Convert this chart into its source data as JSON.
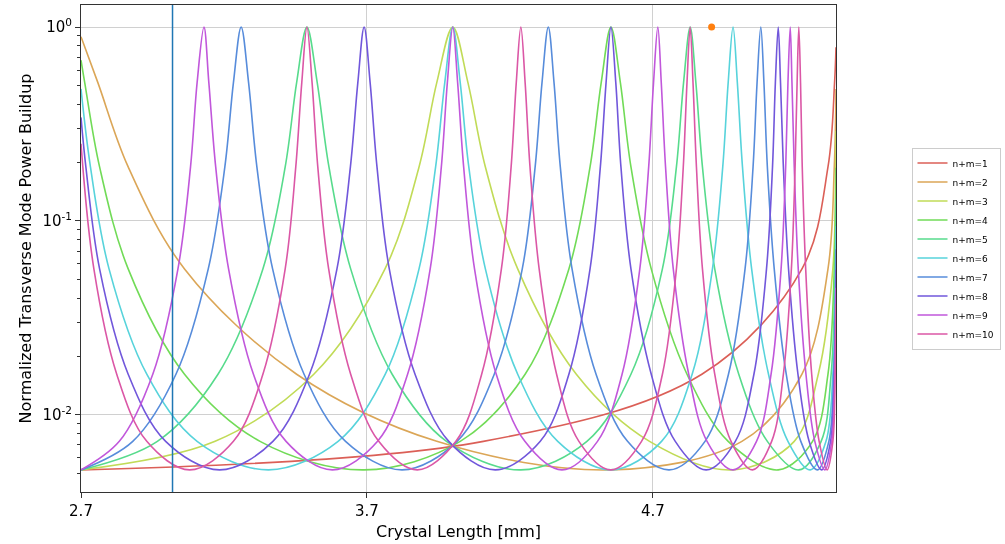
{
  "chart_data": {
    "type": "line",
    "xlabel": "Crystal Length [mm]",
    "ylabel": "Normalized Transverse Mode Power Buildup",
    "log": "y",
    "grid": true,
    "legend": "right",
    "line_style": "solid",
    "xlim": [
      2.7,
      5.34
    ],
    "xticks": [
      2.7,
      3.7,
      4.7
    ],
    "ylim": [
      0.004,
      1.3
    ],
    "yticks": [
      {
        "value": 0.005,
        "label": null
      },
      {
        "value": 0.006,
        "label": null
      },
      {
        "value": 0.007,
        "label": null
      },
      {
        "value": 0.008,
        "label": null
      },
      {
        "value": 0.009,
        "label": null
      },
      {
        "value": 0.01,
        "label": "10$^{-2}$"
      },
      {
        "value": 0.02,
        "label": null
      },
      {
        "value": 0.03,
        "label": null
      },
      {
        "value": 0.04,
        "label": null
      },
      {
        "value": 0.05,
        "label": null
      },
      {
        "value": 0.06,
        "label": null
      },
      {
        "value": 0.07,
        "label": null
      },
      {
        "value": 0.08,
        "label": null
      },
      {
        "value": 0.09,
        "label": null
      },
      {
        "value": 0.1,
        "label": "10$^{-1}$"
      },
      {
        "value": 0.2,
        "label": null
      },
      {
        "value": 0.3,
        "label": null
      },
      {
        "value": 0.4,
        "label": null
      },
      {
        "value": 0.5,
        "label": null
      },
      {
        "value": 0.6,
        "label": null
      },
      {
        "value": 0.7,
        "label": null
      },
      {
        "value": 0.8,
        "label": null
      },
      {
        "value": 0.9,
        "label": null
      },
      {
        "value": 1,
        "label": "10$^{0}$"
      }
    ],
    "ref_lines": [
      {
        "axis": "x",
        "value": 3.02,
        "color": "#1f77b4",
        "line_style": "solid"
      }
    ],
    "series": [
      {
        "name": "n+m=1",
        "color": "#db5f57",
        "x": [
          2.7,
          4.107,
          4.871,
          5.221,
          5.312,
          5.335,
          5.34
        ],
        "values": [
          0.0052,
          0.0073,
          0.0162,
          0.0566,
          0.19,
          0.517,
          0.787
        ]
      },
      {
        "name": "n+m=2",
        "color": "#dba657",
        "x": [
          2.7,
          2.759,
          2.865,
          3.062,
          3.454,
          3.944,
          4.553,
          5.011,
          5.221,
          5.312,
          5.334,
          5.34
        ],
        "values": [
          0.892,
          0.517,
          0.19,
          0.0566,
          0.0162,
          0.0073,
          0.0052,
          0.0073,
          0.0162,
          0.0566,
          0.19,
          0.48
        ]
      },
      {
        "name": "n+m=3",
        "color": "#c1db57",
        "x": [
          2.7,
          3.169,
          3.514,
          3.763,
          3.882,
          3.944,
          4.0,
          4.053,
          4.114,
          4.227,
          4.432,
          4.688,
          4.98,
          5.194,
          5.278,
          5.329,
          5.339,
          5.34
        ],
        "values": [
          0.0052,
          0.0073,
          0.0162,
          0.0566,
          0.19,
          0.517,
          1,
          0.517,
          0.19,
          0.0566,
          0.0162,
          0.0073,
          0.0052,
          0.0073,
          0.0162,
          0.0566,
          0.19,
          0.291
        ]
      },
      {
        "name": "n+m=4",
        "color": "#71db57",
        "x": [
          2.7,
          2.713,
          2.765,
          2.865,
          3.062,
          3.326,
          3.69,
          4.026,
          4.253,
          4.406,
          4.48,
          4.519,
          4.553,
          4.586,
          4.623,
          4.694,
          4.819,
          4.963,
          5.138,
          5.258,
          5.312,
          5.334,
          5.34
        ],
        "values": [
          0.675,
          0.517,
          0.19,
          0.0566,
          0.0162,
          0.0073,
          0.0052,
          0.0073,
          0.0162,
          0.0566,
          0.19,
          0.517,
          1,
          0.517,
          0.19,
          0.0566,
          0.0162,
          0.0073,
          0.0052,
          0.0073,
          0.0162,
          0.0566,
          0.188
        ]
      },
      {
        "name": "n+m=5",
        "color": "#57db8c",
        "x": [
          2.7,
          2.967,
          3.179,
          3.336,
          3.414,
          3.454,
          3.49,
          3.526,
          3.567,
          3.643,
          3.788,
          3.978,
          4.238,
          4.469,
          4.623,
          4.733,
          4.782,
          4.807,
          4.83,
          4.85,
          4.873,
          4.916,
          5.0,
          5.1,
          5.21,
          5.288,
          5.323,
          5.337,
          5.34
        ],
        "values": [
          0.0052,
          0.0073,
          0.0162,
          0.0566,
          0.19,
          0.517,
          1,
          0.517,
          0.19,
          0.0566,
          0.0162,
          0.0073,
          0.0052,
          0.0073,
          0.0162,
          0.0566,
          0.19,
          0.517,
          1,
          0.517,
          0.19,
          0.0566,
          0.0162,
          0.0073,
          0.0052,
          0.0073,
          0.0162,
          0.0566,
          0.13
        ]
      },
      {
        "name": "n+m=6",
        "color": "#57d3db",
        "x": [
          2.7,
          2.733,
          2.798,
          2.93,
          3.106,
          3.356,
          3.599,
          3.764,
          3.882,
          3.94,
          3.972,
          4.0,
          4.026,
          4.056,
          4.114,
          4.227,
          4.367,
          4.553,
          4.73,
          4.837,
          4.908,
          4.944,
          4.963,
          4.98,
          4.995,
          5.013,
          5.045,
          5.104,
          5.172,
          5.25,
          5.305,
          5.329,
          5.339,
          5.34
        ],
        "values": [
          0.48,
          0.19,
          0.0566,
          0.0162,
          0.0073,
          0.0052,
          0.0073,
          0.0162,
          0.0566,
          0.19,
          0.517,
          1,
          0.517,
          0.19,
          0.0566,
          0.0162,
          0.0073,
          0.0052,
          0.0073,
          0.0162,
          0.0566,
          0.19,
          0.517,
          1,
          0.517,
          0.19,
          0.0566,
          0.0162,
          0.0073,
          0.0052,
          0.0073,
          0.0162,
          0.0566,
          0.094
        ]
      },
      {
        "name": "n+m=7",
        "color": "#578cdb",
        "x": [
          2.7,
          2.881,
          3.032,
          3.145,
          3.203,
          3.233,
          3.26,
          3.286,
          3.315,
          3.37,
          3.48,
          3.625,
          3.823,
          4.015,
          4.145,
          4.243,
          4.288,
          4.312,
          4.334,
          4.354,
          4.376,
          4.417,
          4.501,
          4.611,
          4.757,
          4.882,
          4.964,
          5.022,
          5.05,
          5.064,
          5.077,
          5.088,
          5.1,
          5.124,
          5.166,
          5.217,
          5.275,
          5.315,
          5.332,
          5.34
        ],
        "values": [
          0.0052,
          0.0073,
          0.0162,
          0.0566,
          0.19,
          0.517,
          1,
          0.517,
          0.19,
          0.0566,
          0.0162,
          0.0073,
          0.0052,
          0.0073,
          0.0162,
          0.0566,
          0.19,
          0.517,
          1,
          0.517,
          0.19,
          0.0566,
          0.0162,
          0.0073,
          0.0052,
          0.0073,
          0.0162,
          0.0566,
          0.19,
          0.517,
          1,
          0.517,
          0.19,
          0.0566,
          0.0162,
          0.0073,
          0.0052,
          0.0073,
          0.0162,
          0.0715
        ]
      },
      {
        "name": "n+m=8",
        "color": "#7157db",
        "x": [
          2.7,
          2.717,
          2.765,
          2.865,
          2.996,
          3.185,
          3.371,
          3.499,
          3.595,
          3.642,
          3.668,
          3.69,
          3.711,
          3.735,
          3.778,
          3.868,
          3.986,
          4.149,
          4.306,
          4.406,
          4.48,
          4.516,
          4.536,
          4.553,
          4.57,
          4.588,
          4.623,
          4.694,
          4.778,
          4.886,
          4.988,
          5.053,
          5.097,
          5.118,
          5.128,
          5.138,
          5.146,
          5.156,
          5.174,
          5.207,
          5.246,
          5.29,
          5.321,
          5.334,
          5.34
        ],
        "values": [
          0.342,
          0.19,
          0.0566,
          0.0162,
          0.0073,
          0.0052,
          0.0073,
          0.0162,
          0.0566,
          0.19,
          0.517,
          1,
          0.517,
          0.19,
          0.0566,
          0.0162,
          0.0073,
          0.0052,
          0.0073,
          0.0162,
          0.0566,
          0.19,
          0.517,
          1,
          0.517,
          0.19,
          0.0566,
          0.0162,
          0.0073,
          0.0052,
          0.0073,
          0.0162,
          0.0566,
          0.19,
          0.517,
          1,
          0.517,
          0.19,
          0.0566,
          0.0162,
          0.0073,
          0.0052,
          0.0073,
          0.0162,
          0.0561
        ]
      },
      {
        "name": "n+m=9",
        "color": "#c157db",
        "x": [
          2.7,
          2.834,
          2.951,
          3.039,
          3.083,
          3.106,
          3.13,
          3.147,
          3.171,
          3.216,
          3.303,
          3.417,
          3.579,
          3.737,
          3.842,
          3.921,
          3.96,
          3.981,
          4.0,
          4.017,
          4.038,
          4.076,
          4.152,
          4.252,
          4.382,
          4.506,
          4.592,
          4.654,
          4.685,
          4.702,
          4.717,
          4.729,
          4.744,
          4.771,
          4.825,
          4.889,
          4.98,
          5.062,
          5.113,
          5.148,
          5.164,
          5.172,
          5.18,
          5.186,
          5.194,
          5.208,
          5.235,
          5.266,
          5.301,
          5.325,
          5.336,
          5.34
        ],
        "values": [
          0.0052,
          0.0073,
          0.0162,
          0.0566,
          0.19,
          0.517,
          1,
          0.517,
          0.19,
          0.0566,
          0.0162,
          0.0073,
          0.0052,
          0.0073,
          0.0162,
          0.0566,
          0.19,
          0.517,
          1,
          0.517,
          0.19,
          0.0566,
          0.0162,
          0.0073,
          0.0052,
          0.0073,
          0.0162,
          0.0566,
          0.19,
          0.517,
          1,
          0.517,
          0.19,
          0.0566,
          0.0162,
          0.0073,
          0.0052,
          0.0073,
          0.0162,
          0.0566,
          0.19,
          0.517,
          1,
          0.517,
          0.19,
          0.0566,
          0.0162,
          0.0073,
          0.0052,
          0.0073,
          0.0162,
          0.0452
        ]
      },
      {
        "name": "n+m=10",
        "color": "#db57a6",
        "x": [
          2.7,
          2.745,
          2.825,
          2.93,
          3.08,
          3.233,
          3.336,
          3.414,
          3.451,
          3.472,
          3.49,
          3.508,
          3.528,
          3.566,
          3.643,
          3.741,
          3.876,
          4.011,
          4.101,
          4.17,
          4.204,
          4.222,
          4.238,
          4.253,
          4.27,
          4.302,
          4.363,
          4.441,
          4.553,
          4.66,
          4.733,
          4.782,
          4.806,
          4.819,
          4.83,
          4.84,
          4.852,
          4.873,
          4.916,
          4.973,
          5.048,
          5.115,
          5.156,
          5.184,
          5.197,
          5.204,
          5.21,
          5.216,
          5.222,
          5.234,
          5.255,
          5.281,
          5.309,
          5.329,
          5.337,
          5.34
        ],
        "values": [
          0.25,
          0.0566,
          0.0162,
          0.0073,
          0.0052,
          0.0073,
          0.0162,
          0.0566,
          0.19,
          0.517,
          1,
          0.517,
          0.19,
          0.0566,
          0.0162,
          0.0073,
          0.0052,
          0.0073,
          0.0162,
          0.0566,
          0.19,
          0.517,
          1,
          0.517,
          0.19,
          0.0566,
          0.0162,
          0.0073,
          0.0052,
          0.0073,
          0.0162,
          0.0566,
          0.19,
          0.517,
          1,
          0.517,
          0.19,
          0.0566,
          0.0162,
          0.0073,
          0.0052,
          0.0073,
          0.0162,
          0.0566,
          0.19,
          0.517,
          1,
          0.517,
          0.19,
          0.0566,
          0.0162,
          0.0073,
          0.0052,
          0.0073,
          0.0162,
          0.0373
        ]
      },
      {
        "type": "scatter",
        "color": "#ff7f0e",
        "marker": "circle",
        "x": [
          4.905
        ],
        "values": [
          1
        ]
      }
    ]
  }
}
